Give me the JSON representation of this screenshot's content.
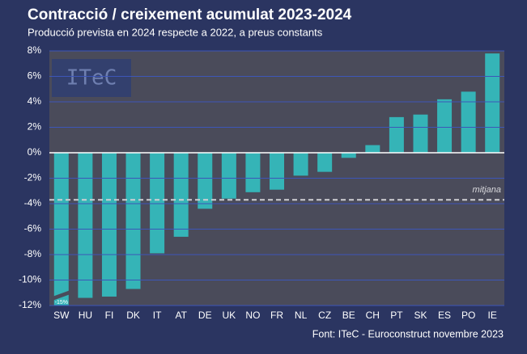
{
  "chart_data": {
    "type": "bar",
    "title": "Contracció / creixement acumulat 2023-2024",
    "subtitle": "Producció prevista en 2024 respecte a 2022, a preus constants",
    "source": "Font: ITeC - Euroconstruct novembre 2023",
    "logo": "ITeC",
    "categories": [
      "SW",
      "HU",
      "FI",
      "DK",
      "IT",
      "AT",
      "DE",
      "UK",
      "NO",
      "FR",
      "NL",
      "CZ",
      "BE",
      "CH",
      "PT",
      "SK",
      "ES",
      "PO",
      "IE"
    ],
    "values": [
      -15,
      -11.4,
      -11.3,
      -10.7,
      -7.9,
      -6.6,
      -4.4,
      -3.6,
      -3.1,
      -2.9,
      -1.8,
      -1.5,
      -0.4,
      0.6,
      2.8,
      3.0,
      4.2,
      4.8,
      7.8
    ],
    "value_labels": [
      "-15%",
      null,
      null,
      null,
      null,
      null,
      null,
      null,
      null,
      null,
      null,
      null,
      null,
      null,
      null,
      null,
      null,
      null,
      null
    ],
    "color": "#35b4b7",
    "average": {
      "label": "mitjana",
      "value": -3.7
    },
    "ylim": [
      -12,
      8
    ],
    "yticks": [
      {
        "value": -12,
        "label": "-12%"
      },
      {
        "value": -10,
        "label": "-10%"
      },
      {
        "value": -8,
        "label": "-8%"
      },
      {
        "value": -6,
        "label": "-6%"
      },
      {
        "value": -4,
        "label": "-4%"
      },
      {
        "value": -2,
        "label": "-2%"
      },
      {
        "value": 0,
        "label": "0%"
      },
      {
        "value": 2,
        "label": "2%"
      },
      {
        "value": 4,
        "label": "4%"
      },
      {
        "value": 6,
        "label": "6%"
      },
      {
        "value": 8,
        "label": "8%"
      }
    ],
    "grid": true
  }
}
